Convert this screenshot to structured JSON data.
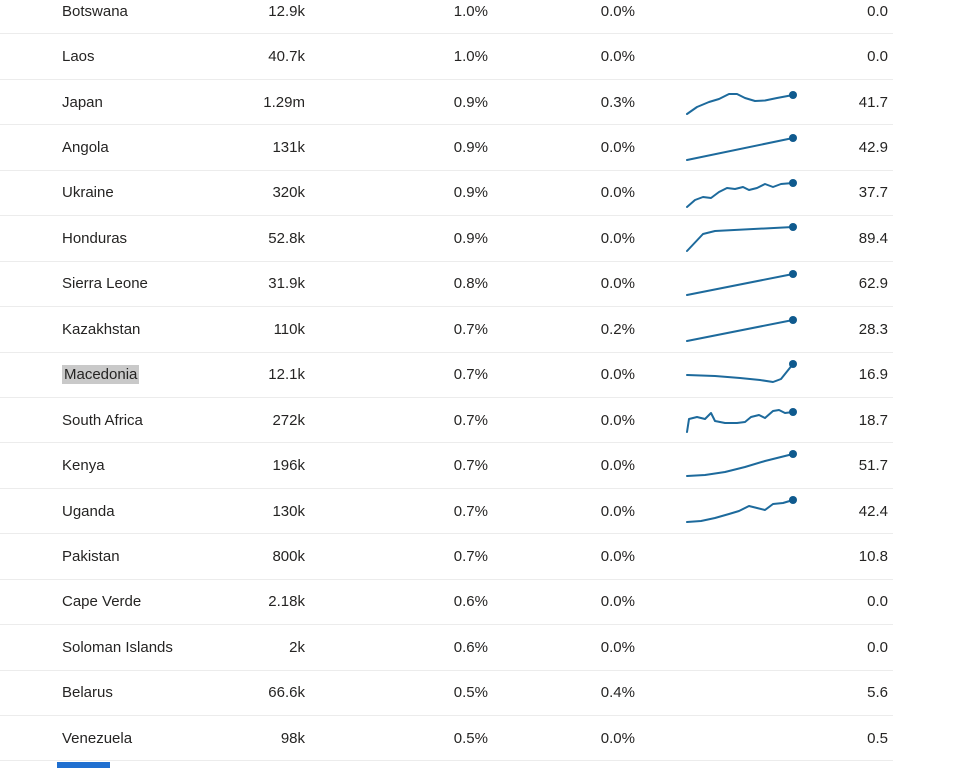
{
  "colors": {
    "text": "#252423",
    "row_divider": "#ececec",
    "sparkline_line": "#1d6a9c",
    "sparkline_dot": "#0f5a8e",
    "selection_highlight": "#c9c9c9",
    "scrollbar_thumb": "#1f6fd0"
  },
  "chart_data": {
    "type": "table",
    "columns": [
      "country",
      "count",
      "share_pct",
      "share2_pct",
      "trend_sparkline",
      "value"
    ],
    "sparkline_axis": {
      "x_range": [
        0,
        115
      ],
      "y_range": [
        0,
        34
      ],
      "y_inverted": true
    },
    "rows": [
      {
        "country": "Botswana",
        "count": "12.9k",
        "pct1": "1.0%",
        "pct2": "0.0%",
        "value": "0.0",
        "highlighted": false,
        "trend": null
      },
      {
        "country": "Laos",
        "count": "40.7k",
        "pct1": "1.0%",
        "pct2": "0.0%",
        "value": "0.0",
        "highlighted": false,
        "trend": null
      },
      {
        "country": "Japan",
        "count": "1.29m",
        "pct1": "0.9%",
        "pct2": "0.3%",
        "value": "41.7",
        "highlighted": false,
        "trend": [
          [
            2,
            29
          ],
          [
            12,
            22
          ],
          [
            24,
            17
          ],
          [
            34,
            14
          ],
          [
            44,
            9
          ],
          [
            52,
            9
          ],
          [
            60,
            13
          ],
          [
            70,
            16
          ],
          [
            80,
            15.5
          ],
          [
            92,
            13
          ],
          [
            108,
            10
          ]
        ]
      },
      {
        "country": "Angola",
        "count": "131k",
        "pct1": "0.9%",
        "pct2": "0.0%",
        "value": "42.9",
        "highlighted": false,
        "trend": [
          [
            2,
            29
          ],
          [
            108,
            7
          ]
        ]
      },
      {
        "country": "Ukraine",
        "count": "320k",
        "pct1": "0.9%",
        "pct2": "0.0%",
        "value": "37.7",
        "highlighted": false,
        "trend": [
          [
            2,
            31
          ],
          [
            10,
            24
          ],
          [
            18,
            21
          ],
          [
            26,
            22
          ],
          [
            34,
            16
          ],
          [
            42,
            12
          ],
          [
            50,
            13
          ],
          [
            58,
            11
          ],
          [
            64,
            14
          ],
          [
            72,
            12
          ],
          [
            80,
            8
          ],
          [
            88,
            11
          ],
          [
            96,
            8
          ],
          [
            108,
            7
          ]
        ]
      },
      {
        "country": "Honduras",
        "count": "52.8k",
        "pct1": "0.9%",
        "pct2": "0.0%",
        "value": "89.4",
        "highlighted": false,
        "trend": [
          [
            2,
            30
          ],
          [
            18,
            13
          ],
          [
            30,
            10
          ],
          [
            108,
            6
          ]
        ]
      },
      {
        "country": "Sierra Leone",
        "count": "31.9k",
        "pct1": "0.8%",
        "pct2": "0.0%",
        "value": "62.9",
        "highlighted": false,
        "trend": [
          [
            2,
            28
          ],
          [
            108,
            7
          ]
        ]
      },
      {
        "country": "Kazakhstan",
        "count": "110k",
        "pct1": "0.7%",
        "pct2": "0.2%",
        "value": "28.3",
        "highlighted": false,
        "trend": [
          [
            2,
            29
          ],
          [
            108,
            8
          ]
        ]
      },
      {
        "country": "Macedonia",
        "count": "12.1k",
        "pct1": "0.7%",
        "pct2": "0.0%",
        "value": "16.9",
        "highlighted": true,
        "trend": [
          [
            2,
            17
          ],
          [
            30,
            18
          ],
          [
            55,
            20
          ],
          [
            75,
            22
          ],
          [
            88,
            24
          ],
          [
            96,
            21
          ],
          [
            108,
            6
          ]
        ]
      },
      {
        "country": "South Africa",
        "count": "272k",
        "pct1": "0.7%",
        "pct2": "0.0%",
        "value": "18.7",
        "highlighted": false,
        "trend": [
          [
            2,
            29
          ],
          [
            4,
            16
          ],
          [
            12,
            14
          ],
          [
            20,
            16
          ],
          [
            26,
            10
          ],
          [
            30,
            18
          ],
          [
            40,
            20
          ],
          [
            52,
            20
          ],
          [
            60,
            19
          ],
          [
            66,
            14
          ],
          [
            74,
            12
          ],
          [
            80,
            15
          ],
          [
            88,
            8
          ],
          [
            94,
            7
          ],
          [
            100,
            10
          ],
          [
            108,
            9
          ]
        ]
      },
      {
        "country": "Kenya",
        "count": "196k",
        "pct1": "0.7%",
        "pct2": "0.0%",
        "value": "51.7",
        "highlighted": false,
        "trend": [
          [
            2,
            27
          ],
          [
            20,
            26
          ],
          [
            40,
            23
          ],
          [
            60,
            18
          ],
          [
            80,
            12
          ],
          [
            108,
            5
          ]
        ]
      },
      {
        "country": "Uganda",
        "count": "130k",
        "pct1": "0.7%",
        "pct2": "0.0%",
        "value": "42.4",
        "highlighted": false,
        "trend": [
          [
            2,
            28
          ],
          [
            16,
            27
          ],
          [
            30,
            24
          ],
          [
            44,
            20
          ],
          [
            54,
            17
          ],
          [
            64,
            12
          ],
          [
            72,
            14
          ],
          [
            80,
            16
          ],
          [
            88,
            10
          ],
          [
            98,
            9
          ],
          [
            108,
            6
          ]
        ]
      },
      {
        "country": "Pakistan",
        "count": "800k",
        "pct1": "0.7%",
        "pct2": "0.0%",
        "value": "10.8",
        "highlighted": false,
        "trend": null
      },
      {
        "country": "Cape Verde",
        "count": "2.18k",
        "pct1": "0.6%",
        "pct2": "0.0%",
        "value": "0.0",
        "highlighted": false,
        "trend": null
      },
      {
        "country": "Soloman Islands",
        "count": "2k",
        "pct1": "0.6%",
        "pct2": "0.0%",
        "value": "0.0",
        "highlighted": false,
        "trend": null
      },
      {
        "country": "Belarus",
        "count": "66.6k",
        "pct1": "0.5%",
        "pct2": "0.4%",
        "value": "5.6",
        "highlighted": false,
        "trend": null
      },
      {
        "country": "Venezuela",
        "count": "98k",
        "pct1": "0.5%",
        "pct2": "0.0%",
        "value": "0.5",
        "highlighted": false,
        "trend": null
      }
    ]
  }
}
